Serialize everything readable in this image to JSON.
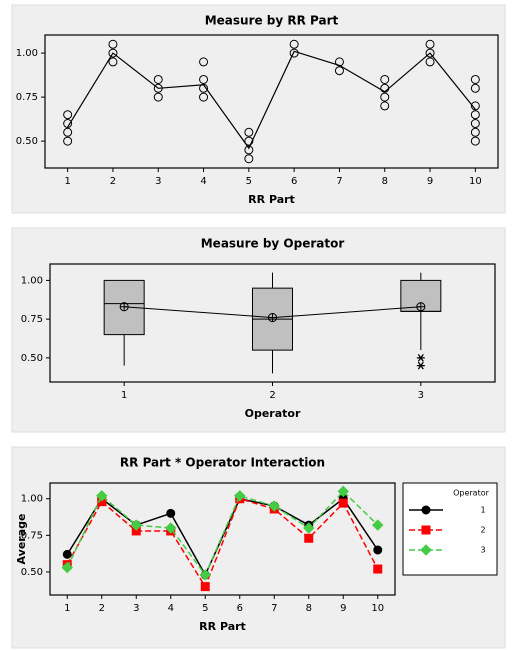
{
  "chart_data": [
    {
      "type": "dotplot",
      "title": "Measure by RR Part",
      "x_label": "RR Part",
      "xlim": [
        0.5,
        10.5
      ],
      "xticks": [
        1,
        2,
        3,
        4,
        5,
        6,
        7,
        8,
        9,
        10
      ],
      "ylim": [
        0.37,
        1.08
      ],
      "yticks": [
        {
          "value": 0.5,
          "label": "0.50"
        },
        {
          "value": 0.75,
          "label": "0.75"
        },
        {
          "value": 1.0,
          "label": "1.00"
        }
      ],
      "points_x": [
        1,
        1,
        1,
        1,
        2,
        2,
        2,
        3,
        3,
        3,
        4,
        4,
        4,
        4,
        5,
        5,
        5,
        5,
        6,
        6,
        7,
        7,
        8,
        8,
        8,
        8,
        9,
        9,
        9,
        10,
        10,
        10,
        10,
        10,
        10,
        10
      ],
      "points_y": [
        0.5,
        0.55,
        0.6,
        0.65,
        0.95,
        1.0,
        1.05,
        0.75,
        0.8,
        0.85,
        0.75,
        0.8,
        0.85,
        0.95,
        0.4,
        0.45,
        0.5,
        0.55,
        1.0,
        1.05,
        0.9,
        0.95,
        0.7,
        0.75,
        0.8,
        0.85,
        0.95,
        1.0,
        1.05,
        0.5,
        0.55,
        0.6,
        0.65,
        0.7,
        0.8,
        0.85
      ],
      "mean_x": [
        1,
        2,
        3,
        4,
        5,
        6,
        7,
        8,
        9,
        10
      ],
      "mean_y": [
        0.58,
        1.0,
        0.8,
        0.82,
        0.46,
        1.01,
        0.93,
        0.78,
        1.0,
        0.68
      ]
    },
    {
      "type": "boxplot",
      "title": "Measure by Operator",
      "x_label": "Operator",
      "categories": [
        "1",
        "2",
        "3"
      ],
      "ylim": [
        0.37,
        1.08
      ],
      "yticks": [
        {
          "value": 0.5,
          "label": "0.50"
        },
        {
          "value": 0.75,
          "label": "0.75"
        },
        {
          "value": 1.0,
          "label": "1.00"
        }
      ],
      "q1": [
        0.65,
        0.55,
        0.8
      ],
      "median": [
        0.85,
        0.75,
        0.8
      ],
      "q3": [
        1.0,
        0.95,
        1.0
      ],
      "whisker_low": [
        0.45,
        0.4,
        0.55
      ],
      "whisker_high": [
        1.0,
        1.05,
        1.05
      ],
      "means": [
        0.83,
        0.76,
        0.83
      ],
      "outlier_x": [
        3,
        3
      ],
      "outlier_y": [
        0.45,
        0.5
      ],
      "box_color": "#c0c0c0"
    },
    {
      "type": "line",
      "title": "RR Part * Operator Interaction",
      "x_label": "RR Part",
      "y_label": "Average",
      "categories": [
        "1",
        "2",
        "3",
        "4",
        "5",
        "6",
        "7",
        "8",
        "9",
        "10"
      ],
      "ylim": [
        0.37,
        1.08
      ],
      "yticks": [
        {
          "value": 0.5,
          "label": "0.50"
        },
        {
          "value": 0.75,
          "label": "0.75"
        },
        {
          "value": 1.0,
          "label": "1.00"
        }
      ],
      "legend_title": "Operator",
      "legend": "right",
      "series": [
        {
          "name": "1",
          "color": "#000000",
          "marker": "circle",
          "line_style": "solid",
          "values": [
            0.62,
            1.0,
            0.82,
            0.9,
            0.48,
            1.0,
            0.95,
            0.82,
            1.0,
            0.65
          ]
        },
        {
          "name": "2",
          "color": "#ff0000",
          "marker": "square",
          "line_style": "dashed",
          "values": [
            0.55,
            0.98,
            0.78,
            0.78,
            0.4,
            1.0,
            0.93,
            0.73,
            0.97,
            0.52
          ]
        },
        {
          "name": "3",
          "color": "#44cc44",
          "marker": "diamond",
          "line_style": "dashed",
          "values": [
            0.53,
            1.02,
            0.82,
            0.8,
            0.48,
            1.02,
            0.95,
            0.8,
            1.05,
            0.82
          ]
        }
      ]
    }
  ]
}
